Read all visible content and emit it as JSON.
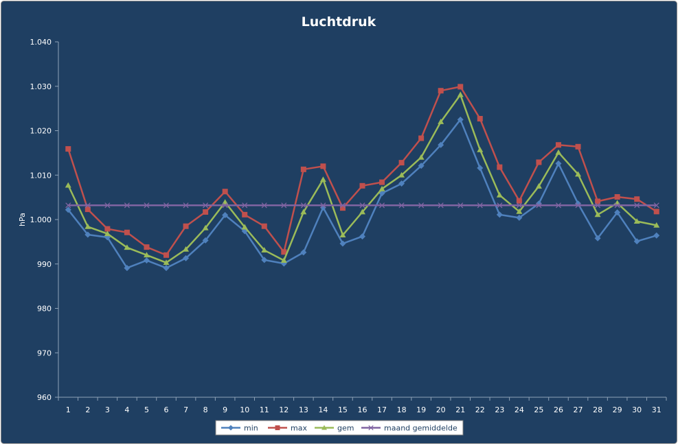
{
  "chart_data": {
    "type": "line",
    "title": "Luchtdruk",
    "xlabel": "",
    "ylabel": "hPa",
    "ylim": [
      960,
      1040
    ],
    "yticks": [
      960,
      970,
      980,
      990,
      1000,
      1010,
      1020,
      1030,
      1040
    ],
    "ytick_labels": [
      "960",
      "970",
      "980",
      "990",
      "1.000",
      "1.010",
      "1.020",
      "1.030",
      "1.040"
    ],
    "categories": [
      "1",
      "2",
      "3",
      "4",
      "5",
      "6",
      "7",
      "8",
      "9",
      "10",
      "11",
      "12",
      "13",
      "14",
      "15",
      "16",
      "17",
      "18",
      "19",
      "20",
      "21",
      "22",
      "23",
      "24",
      "25",
      "26",
      "27",
      "28",
      "29",
      "30",
      "31"
    ],
    "grid": false,
    "legend_position": "bottom",
    "series": [
      {
        "name": "min",
        "color": "#4f81bd",
        "marker": "diamond",
        "values": [
          1002.2,
          996.6,
          996.0,
          989.1,
          990.8,
          989.1,
          991.3,
          995.3,
          1001.0,
          997.4,
          990.9,
          990.1,
          992.6,
          1002.7,
          994.6,
          996.2,
          1005.9,
          1008.1,
          1012.1,
          1016.8,
          1022.5,
          1011.6,
          1001.1,
          1000.4,
          1003.6,
          1012.6,
          1003.6,
          995.8,
          1001.6,
          995.1,
          996.4
        ]
      },
      {
        "name": "max",
        "color": "#c0504d",
        "marker": "square",
        "values": [
          1015.9,
          1002.3,
          997.9,
          997.1,
          993.8,
          992.0,
          998.5,
          1001.7,
          1006.3,
          1001.1,
          998.5,
          992.7,
          1011.3,
          1012.0,
          1002.6,
          1007.6,
          1008.4,
          1012.8,
          1018.3,
          1029.0,
          1029.9,
          1022.7,
          1011.8,
          1004.2,
          1012.9,
          1016.8,
          1016.4,
          1004.1,
          1005.1,
          1004.6,
          1001.8
        ]
      },
      {
        "name": "gem",
        "color": "#9bbb59",
        "marker": "triangle",
        "values": [
          1007.7,
          998.4,
          996.8,
          993.7,
          992.0,
          990.3,
          993.3,
          998.1,
          1003.9,
          998.3,
          993.1,
          990.8,
          1001.7,
          1009.0,
          996.5,
          1001.7,
          1006.9,
          1010.0,
          1014.0,
          1022.0,
          1028.1,
          1015.7,
          1005.5,
          1001.8,
          1007.5,
          1015.1,
          1010.2,
          1001.1,
          1003.7,
          999.6,
          998.7
        ]
      },
      {
        "name": "maand gemiddelde",
        "color": "#8064a2",
        "marker": "x",
        "values": [
          1003.2,
          1003.2,
          1003.2,
          1003.2,
          1003.2,
          1003.2,
          1003.2,
          1003.2,
          1003.2,
          1003.2,
          1003.2,
          1003.2,
          1003.2,
          1003.2,
          1003.2,
          1003.2,
          1003.2,
          1003.2,
          1003.2,
          1003.2,
          1003.2,
          1003.2,
          1003.2,
          1003.2,
          1003.2,
          1003.2,
          1003.2,
          1003.2,
          1003.2,
          1003.2,
          1003.2
        ]
      }
    ]
  },
  "colors": {
    "background": "#1f3f62",
    "border": "#8a8a8a",
    "axis": "#8fa3b8",
    "text": "#ffffff",
    "legend_bg": "#ffffff",
    "legend_text": "#1f3f62"
  }
}
